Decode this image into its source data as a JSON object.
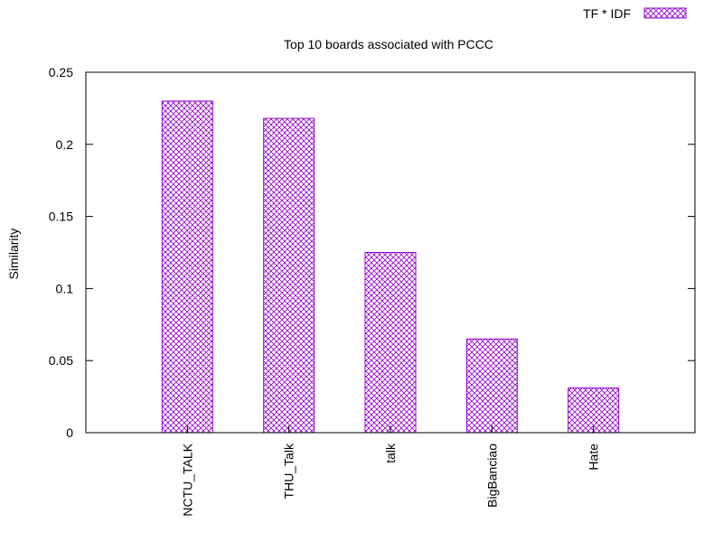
{
  "chart_data": {
    "type": "bar",
    "title": "Top 10 boards associated with PCCC",
    "xlabel": "",
    "ylabel": "Similarity",
    "categories": [
      "NCTU_TALK",
      "THU_Talk",
      "talk",
      "BigBanciao",
      "Hate"
    ],
    "series": [
      {
        "name": "TF * IDF",
        "values": [
          0.23,
          0.218,
          0.125,
          0.065,
          0.031
        ]
      }
    ],
    "ylim": [
      0,
      0.25
    ],
    "yticks": [
      "0",
      "0.05",
      "0.1",
      "0.15",
      "0.2",
      "0.25"
    ],
    "grid": false,
    "legend_position": "top-right",
    "bar_color": "#9400d3",
    "bar_pattern": "crosshatch"
  }
}
